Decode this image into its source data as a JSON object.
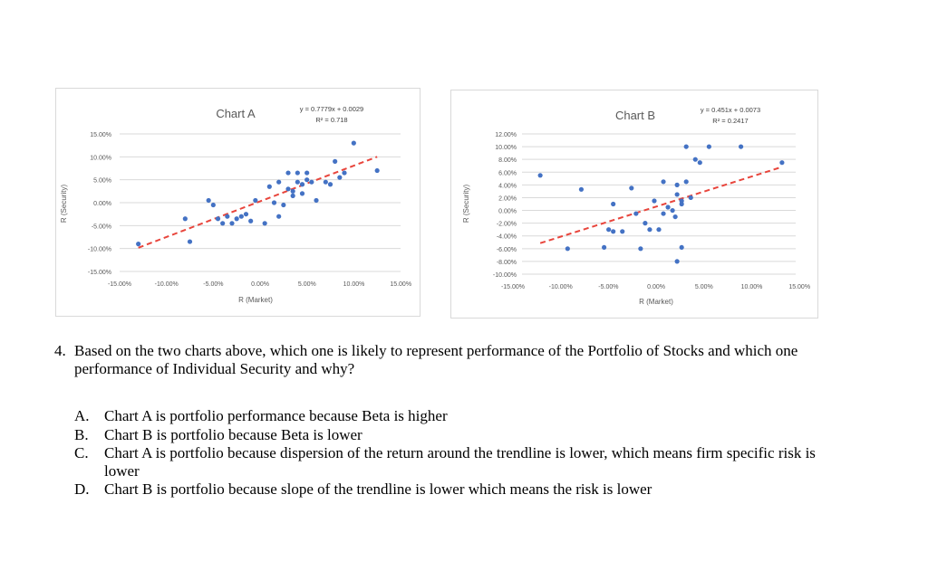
{
  "chart_data": [
    {
      "type": "scatter",
      "title": "Chart   A",
      "equation": "y = 0.7779x + 0.0029",
      "r_squared": "R² = 0.718",
      "xlabel": "R (Market)",
      "ylabel": "R (Security)",
      "xlim": [
        -0.15,
        0.15
      ],
      "ylim": [
        -0.15,
        0.15
      ],
      "x_ticks": [
        "-15.00%",
        "-10.00%",
        "-5.00%",
        "0.00%",
        "5.00%",
        "10.00%",
        "15.00%"
      ],
      "y_ticks": [
        "15.00%",
        "10.00%",
        "5.00%",
        "0.00%",
        "-5.00%",
        "-10.00%",
        "-15.00%"
      ],
      "trendline": {
        "slope": 0.7779,
        "intercept": 0.0029,
        "x_range": [
          -0.13,
          0.125
        ]
      },
      "point_color": "#4472c4",
      "trend_color": "#e8453c",
      "points": [
        [
          -0.13,
          -0.09
        ],
        [
          -0.08,
          -0.035
        ],
        [
          -0.075,
          -0.085
        ],
        [
          -0.055,
          0.005
        ],
        [
          -0.05,
          -0.005
        ],
        [
          -0.045,
          -0.035
        ],
        [
          -0.04,
          -0.045
        ],
        [
          -0.035,
          -0.03
        ],
        [
          -0.03,
          -0.045
        ],
        [
          -0.025,
          -0.035
        ],
        [
          -0.02,
          -0.03
        ],
        [
          -0.015,
          -0.025
        ],
        [
          -0.01,
          -0.04
        ],
        [
          -0.005,
          0.005
        ],
        [
          0.005,
          -0.045
        ],
        [
          0.01,
          0.035
        ],
        [
          0.015,
          0.0
        ],
        [
          0.02,
          -0.03
        ],
        [
          0.02,
          0.045
        ],
        [
          0.025,
          -0.005
        ],
        [
          0.03,
          0.03
        ],
        [
          0.03,
          0.065
        ],
        [
          0.035,
          0.025
        ],
        [
          0.035,
          0.015
        ],
        [
          0.04,
          0.065
        ],
        [
          0.04,
          0.045
        ],
        [
          0.045,
          0.04
        ],
        [
          0.045,
          0.02
        ],
        [
          0.05,
          0.065
        ],
        [
          0.05,
          0.05
        ],
        [
          0.055,
          0.045
        ],
        [
          0.06,
          0.005
        ],
        [
          0.07,
          0.045
        ],
        [
          0.075,
          0.04
        ],
        [
          0.08,
          0.09
        ],
        [
          0.085,
          0.055
        ],
        [
          0.09,
          0.065
        ],
        [
          0.1,
          0.13
        ],
        [
          0.125,
          0.07
        ]
      ]
    },
    {
      "type": "scatter",
      "title": "Chart   B",
      "equation": "y = 0.451x + 0.0073",
      "r_squared": "R² = 0.2417",
      "xlabel": "R (Market)",
      "ylabel": "R (Security)",
      "xlim": [
        -0.15,
        0.15
      ],
      "ylim": [
        -0.1,
        0.12
      ],
      "x_ticks": [
        "-15.00%",
        "-10.00%",
        "-5.00%",
        "0.00%",
        "5.00%",
        "10.00%",
        "15.00%"
      ],
      "y_ticks": [
        "12.00%",
        "10.00%",
        "8.00%",
        "6.00%",
        "4.00%",
        "2.00%",
        "0.00%",
        "-2.00%",
        "-4.00%",
        "-6.00%",
        "-8.00%",
        "-10.00%"
      ],
      "trendline": {
        "slope": 0.451,
        "intercept": 0.0073,
        "x_range": [
          -0.13,
          0.135
        ]
      },
      "point_color": "#4472c4",
      "trend_color": "#e8453c",
      "points": [
        [
          -0.13,
          0.055
        ],
        [
          -0.1,
          -0.06
        ],
        [
          -0.085,
          0.033
        ],
        [
          -0.06,
          -0.058
        ],
        [
          -0.055,
          -0.03
        ],
        [
          -0.05,
          -0.033
        ],
        [
          -0.05,
          0.01
        ],
        [
          -0.04,
          -0.033
        ],
        [
          -0.03,
          0.035
        ],
        [
          -0.025,
          -0.005
        ],
        [
          -0.02,
          -0.06
        ],
        [
          -0.015,
          -0.02
        ],
        [
          -0.01,
          -0.03
        ],
        [
          -0.005,
          0.015
        ],
        [
          0.0,
          -0.03
        ],
        [
          0.005,
          0.045
        ],
        [
          0.005,
          -0.005
        ],
        [
          0.01,
          0.005
        ],
        [
          0.015,
          0.0
        ],
        [
          0.018,
          -0.01
        ],
        [
          0.02,
          0.04
        ],
        [
          0.02,
          0.025
        ],
        [
          0.025,
          0.01
        ],
        [
          0.025,
          0.015
        ],
        [
          0.03,
          0.045
        ],
        [
          0.035,
          0.02
        ],
        [
          0.03,
          0.1
        ],
        [
          0.04,
          0.08
        ],
        [
          0.045,
          0.075
        ],
        [
          0.055,
          0.1
        ],
        [
          0.025,
          -0.058
        ],
        [
          0.02,
          -0.08
        ],
        [
          0.09,
          0.1
        ],
        [
          0.135,
          0.075
        ]
      ]
    }
  ],
  "question": {
    "number": "4.",
    "text": "Based on the two charts above, which one is likely to represent performance of the Portfolio of Stocks and which one performance of Individual Security and why?"
  },
  "options": [
    {
      "letter": "A.",
      "text": "Chart A is portfolio performance because Beta is higher"
    },
    {
      "letter": "B.",
      "text": "Chart B is portfolio because Beta is lower"
    },
    {
      "letter": "C.",
      "text": "Chart A is portfolio because dispersion of the return around the trendline is lower, which means firm specific risk is lower"
    },
    {
      "letter": "D.",
      "text": "Chart B is portfolio because slope of the trendline is lower which means the risk is lower"
    }
  ]
}
